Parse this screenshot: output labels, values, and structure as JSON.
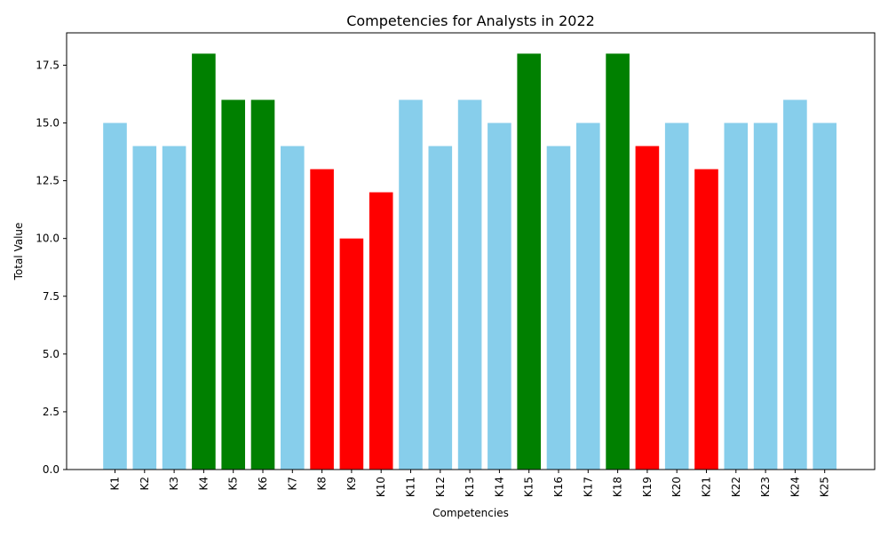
{
  "chart_data": {
    "type": "bar",
    "title": "Competencies for Analysts in 2022",
    "xlabel": "Competencies",
    "ylabel": "Total Value",
    "ylim": [
      0,
      18.9
    ],
    "yticks": [
      0.0,
      2.5,
      5.0,
      7.5,
      10.0,
      12.5,
      15.0,
      17.5
    ],
    "ytick_labels": [
      "0.0",
      "2.5",
      "5.0",
      "7.5",
      "10.0",
      "12.5",
      "15.0",
      "17.5"
    ],
    "grid": false,
    "categories": [
      "K1",
      "K2",
      "K3",
      "K4",
      "K5",
      "K6",
      "K7",
      "K8",
      "K9",
      "K10",
      "K11",
      "K12",
      "K13",
      "K14",
      "K15",
      "K16",
      "K17",
      "K18",
      "K19",
      "K20",
      "K21",
      "K22",
      "K23",
      "K24",
      "K25"
    ],
    "values": [
      15,
      14,
      14,
      18,
      16,
      16,
      14,
      13,
      10,
      12,
      16,
      14,
      16,
      15,
      18,
      14,
      15,
      18,
      14,
      15,
      13,
      15,
      15,
      16,
      15
    ],
    "bar_colors": [
      "#87ceeb",
      "#87ceeb",
      "#87ceeb",
      "#008000",
      "#008000",
      "#008000",
      "#87ceeb",
      "#ff0000",
      "#ff0000",
      "#ff0000",
      "#87ceeb",
      "#87ceeb",
      "#87ceeb",
      "#87ceeb",
      "#008000",
      "#87ceeb",
      "#87ceeb",
      "#008000",
      "#ff0000",
      "#87ceeb",
      "#ff0000",
      "#87ceeb",
      "#87ceeb",
      "#87ceeb",
      "#87ceeb"
    ]
  }
}
